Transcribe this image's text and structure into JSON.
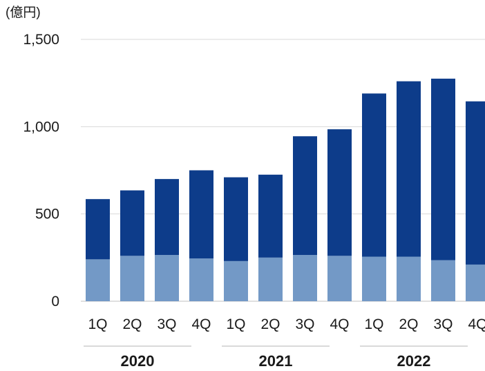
{
  "chart_data": {
    "type": "bar",
    "stacked": true,
    "unit_label": "(億円)",
    "categories": [
      "1Q",
      "2Q",
      "3Q",
      "4Q",
      "1Q",
      "2Q",
      "3Q",
      "4Q",
      "1Q",
      "2Q",
      "3Q",
      "4Q"
    ],
    "year_groups": [
      {
        "label": "2020",
        "count": 4
      },
      {
        "label": "2021",
        "count": 4
      },
      {
        "label": "2022",
        "count": 4
      }
    ],
    "series": [
      {
        "values": [
          240,
          260,
          265,
          245,
          230,
          250,
          265,
          260,
          255,
          255,
          235,
          210
        ],
        "color": "#7399c6"
      },
      {
        "values": [
          345,
          375,
          435,
          505,
          480,
          475,
          680,
          725,
          935,
          1005,
          1040,
          935
        ],
        "color": "#0d3c8a"
      }
    ],
    "y_ticks": [
      "0",
      "500",
      "1,000",
      "1,500"
    ],
    "ylim": [
      0,
      1500
    ],
    "grid": true,
    "legend": "none"
  }
}
